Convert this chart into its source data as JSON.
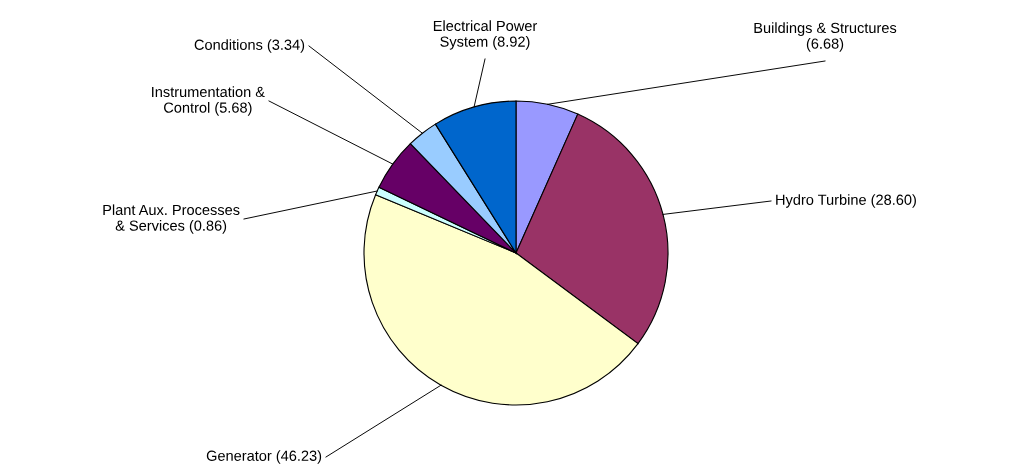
{
  "chart_data": {
    "type": "pie",
    "value_labels": [
      "(6.68)",
      "(28.60)",
      "(46.23)",
      "(0.86)",
      "(5.68)",
      "(3.34)",
      "(8.92)"
    ],
    "categories": [
      "Buildings & Structures",
      "Hydro Turbine",
      "Generator",
      "Plant Aux. Processes\n& Services",
      "Instrumentation &\nControl",
      "Conditions",
      "Electrical Power\nSystem"
    ],
    "values": [
      6.68,
      28.6,
      46.23,
      0.86,
      5.68,
      3.34,
      8.92
    ],
    "colors": [
      "#9999ff",
      "#993366",
      "#ffffcc",
      "#ccffff",
      "#660066",
      "#99ccff",
      "#0066cc"
    ]
  }
}
